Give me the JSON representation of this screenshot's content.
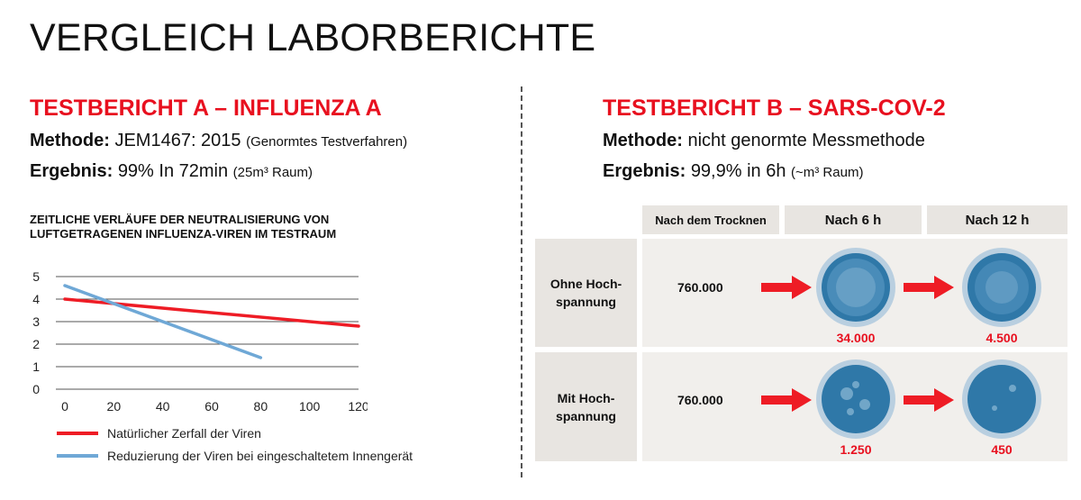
{
  "page_title": "VERGLEICH LABORBERICHTE",
  "report_a": {
    "title": "TESTBERICHT A – INFLUENZA A",
    "method_label": "Methode:",
    "method_value": "JEM1467: 2015",
    "method_note": "(Genormtes Testverfahren)",
    "result_label": "Ergebnis:",
    "result_value": "99% In 72min",
    "result_note": "(25m³ Raum)"
  },
  "report_b": {
    "title": "TESTBERICHT B – SARS-COV-2",
    "method_label": "Methode:",
    "method_value": "nicht genormte Messmethode",
    "result_label": "Ergebnis:",
    "result_value": "99,9% in 6h",
    "result_note": "(~m³ Raum)"
  },
  "chart_data": {
    "type": "line",
    "title": "ZEITLICHE VERLÄUFE DER NEUTRALISIERUNG VON LUFTGETRAGENEN INFLUENZA-VIREN IM TESTRAUM",
    "xlabel": "",
    "ylabel": "",
    "x_ticks": [
      0,
      20,
      40,
      60,
      80,
      100,
      120
    ],
    "y_ticks": [
      0,
      1,
      2,
      3,
      4,
      5
    ],
    "xlim": [
      0,
      120
    ],
    "ylim": [
      0,
      5
    ],
    "grid": "horizontal",
    "legend_position": "bottom",
    "series": [
      {
        "name": "Natürlicher Zerfall der Viren",
        "color": "#ee1c25",
        "x": [
          0,
          120
        ],
        "y": [
          4.0,
          2.8
        ]
      },
      {
        "name": "Reduzierung der Viren bei eingeschaltetem Innengerät",
        "color": "#6fa8d6",
        "x": [
          0,
          80
        ],
        "y": [
          4.6,
          1.4
        ]
      }
    ]
  },
  "table_b": {
    "headers": [
      "Nach dem Trocknen",
      "Nach 6 h",
      "Nach 12 h"
    ],
    "rows": [
      {
        "label": "Ohne Hoch-\nspannung",
        "initial": "760.000",
        "after_6h": "34.000",
        "after_12h": "4.500"
      },
      {
        "label": "Mit Hoch-\nspannung",
        "initial": "760.000",
        "after_6h": "1.250",
        "after_12h": "450"
      }
    ],
    "dish_color": "#2f78a8",
    "arrow_color": "#ee1c25"
  }
}
